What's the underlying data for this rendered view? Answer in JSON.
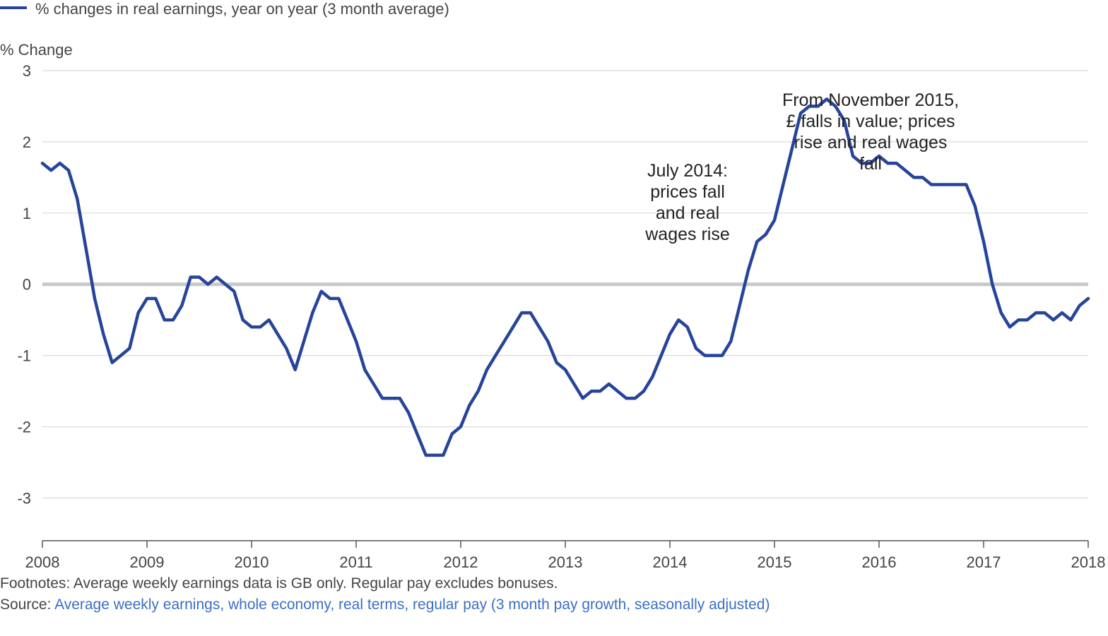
{
  "legend": {
    "label": "% changes in real earnings, year on year (3 month average)"
  },
  "colors": {
    "series": "#27449b",
    "zero_line": "#c8c8c8",
    "grid": "#d9d9d9",
    "axis": "#555555",
    "link": "#3a6fc4"
  },
  "chart_data": {
    "type": "line",
    "title": "",
    "xlabel": "",
    "ylabel": "% Change",
    "xlim": [
      2008.0,
      2018.0
    ],
    "ylim": [
      -3.6,
      3.0
    ],
    "yticks": [
      3,
      2,
      1,
      0,
      -1,
      -2,
      -3
    ],
    "ytick_labels": [
      "3",
      "2",
      "1",
      "0",
      "-1",
      "-2",
      "-3"
    ],
    "xticks": [
      2008,
      2009,
      2010,
      2011,
      2012,
      2013,
      2014,
      2015,
      2016,
      2017,
      2018
    ],
    "xtick_labels": [
      "2008",
      "2009",
      "2010",
      "2011",
      "2012",
      "2013",
      "2014",
      "2015",
      "2016",
      "2017",
      "2018"
    ],
    "grid": true,
    "legend_position": "top-left",
    "series": [
      {
        "name": "% changes in real earnings, year on year (3 month average)",
        "x": [
          2008.0,
          2008.083,
          2008.167,
          2008.25,
          2008.333,
          2008.417,
          2008.5,
          2008.583,
          2008.667,
          2008.75,
          2008.833,
          2008.917,
          2009.0,
          2009.083,
          2009.167,
          2009.25,
          2009.333,
          2009.417,
          2009.5,
          2009.583,
          2009.667,
          2009.75,
          2009.833,
          2009.917,
          2010.0,
          2010.083,
          2010.167,
          2010.25,
          2010.333,
          2010.417,
          2010.5,
          2010.583,
          2010.667,
          2010.75,
          2010.833,
          2010.917,
          2011.0,
          2011.083,
          2011.167,
          2011.25,
          2011.333,
          2011.417,
          2011.5,
          2011.583,
          2011.667,
          2011.75,
          2011.833,
          2011.917,
          2012.0,
          2012.083,
          2012.167,
          2012.25,
          2012.333,
          2012.417,
          2012.5,
          2012.583,
          2012.667,
          2012.75,
          2012.833,
          2012.917,
          2013.0,
          2013.083,
          2013.167,
          2013.25,
          2013.333,
          2013.417,
          2013.5,
          2013.583,
          2013.667,
          2013.75,
          2013.833,
          2013.917,
          2014.0,
          2014.083,
          2014.167,
          2014.25,
          2014.333,
          2014.417,
          2014.5,
          2014.583,
          2014.667,
          2014.75,
          2014.833,
          2014.917,
          2015.0,
          2015.083,
          2015.167,
          2015.25,
          2015.333,
          2015.417,
          2015.5,
          2015.583,
          2015.667,
          2015.75,
          2015.833,
          2015.917,
          2016.0,
          2016.083,
          2016.167,
          2016.25,
          2016.333,
          2016.417,
          2016.5,
          2016.583,
          2016.667,
          2016.75,
          2016.833,
          2016.917,
          2017.0,
          2017.083,
          2017.167,
          2017.25,
          2017.333,
          2017.417,
          2017.5,
          2017.583,
          2017.667,
          2017.75,
          2017.833,
          2017.917,
          2018.0
        ],
        "y": [
          1.7,
          1.6,
          1.7,
          1.6,
          1.2,
          0.5,
          -0.2,
          -0.7,
          -1.1,
          -1.0,
          -0.9,
          -0.4,
          -0.2,
          -0.2,
          -0.5,
          -0.5,
          -0.3,
          0.1,
          0.1,
          0.0,
          0.1,
          0.0,
          -0.1,
          -0.5,
          -0.6,
          -0.6,
          -0.5,
          -0.7,
          -0.9,
          -1.2,
          -0.8,
          -0.4,
          -0.1,
          -0.2,
          -0.2,
          -0.5,
          -0.8,
          -1.2,
          -1.4,
          -1.6,
          -1.6,
          -1.6,
          -1.8,
          -2.1,
          -2.4,
          -2.4,
          -2.4,
          -2.1,
          -2.0,
          -1.7,
          -1.5,
          -1.2,
          -1.0,
          -0.8,
          -0.6,
          -0.4,
          -0.4,
          -0.6,
          -0.8,
          -1.1,
          -1.2,
          -1.4,
          -1.6,
          -1.5,
          -1.5,
          -1.4,
          -1.5,
          -1.6,
          -1.6,
          -1.5,
          -1.3,
          -1.0,
          -0.7,
          -0.5,
          -0.6,
          -0.9,
          -1.0,
          -1.0,
          -1.0,
          -0.8,
          -0.3,
          0.2,
          0.6,
          0.7,
          0.9,
          1.4,
          1.9,
          2.4,
          2.5,
          2.5,
          2.6,
          2.5,
          2.3,
          1.8,
          1.7,
          1.7,
          1.8,
          1.7,
          1.7,
          1.6,
          1.5,
          1.5,
          1.4,
          1.4,
          1.4,
          1.4,
          1.4,
          1.1,
          0.6,
          0.0,
          -0.4,
          -0.6,
          -0.5,
          -0.5,
          -0.4,
          -0.4,
          -0.5,
          -0.4,
          -0.5,
          -0.3,
          -0.2
        ]
      }
    ],
    "annotations": [
      {
        "x": 2014.25,
        "lines": [
          "July 2014:",
          "prices fall",
          "and real",
          "wages rise"
        ]
      },
      {
        "x": 2016.0,
        "lines": [
          "From November 2015,",
          "£ falls in value; prices",
          "rise and real wages",
          "fall"
        ]
      }
    ]
  },
  "footer": {
    "footnote": "Footnotes: Average weekly earnings data is GB only. Regular pay excludes bonuses.",
    "source_prefix": "Source: ",
    "source_link": "Average weekly earnings, whole economy, real terms, regular pay (3 month pay growth, seasonally adjusted)"
  }
}
